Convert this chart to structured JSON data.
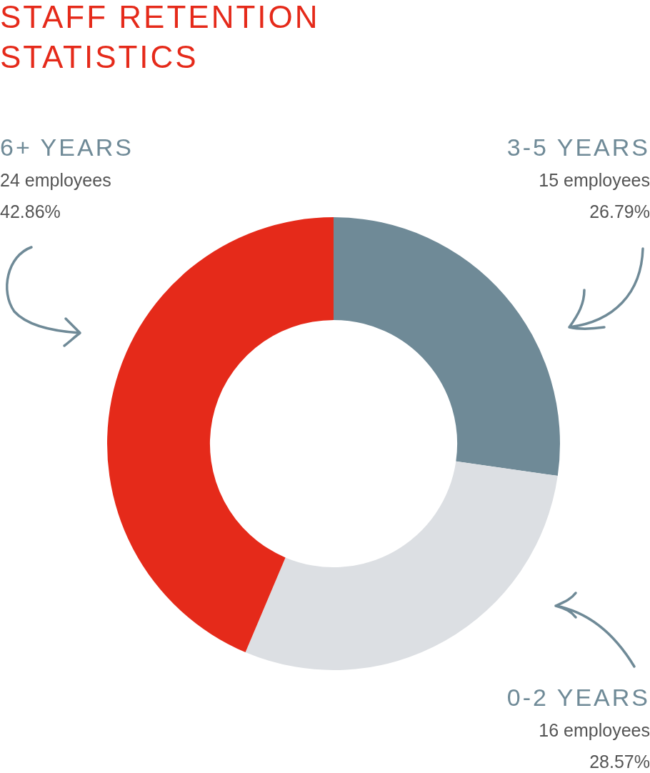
{
  "chart_data": {
    "type": "donut",
    "title": "STAFF RETENTION STATISTICS",
    "categories": [
      "3-5 YEARS",
      "0-2 YEARS",
      "6+ YEARS"
    ],
    "values": [
      15,
      16,
      24
    ],
    "colors": [
      "#6f8a97",
      "#dcdfe3",
      "#e52a1a"
    ],
    "value_labels": [
      "15 employees",
      "16 employees",
      "24 employees"
    ],
    "annotations": [
      "26.79%",
      "28.57%",
      "42.86%"
    ]
  }
}
